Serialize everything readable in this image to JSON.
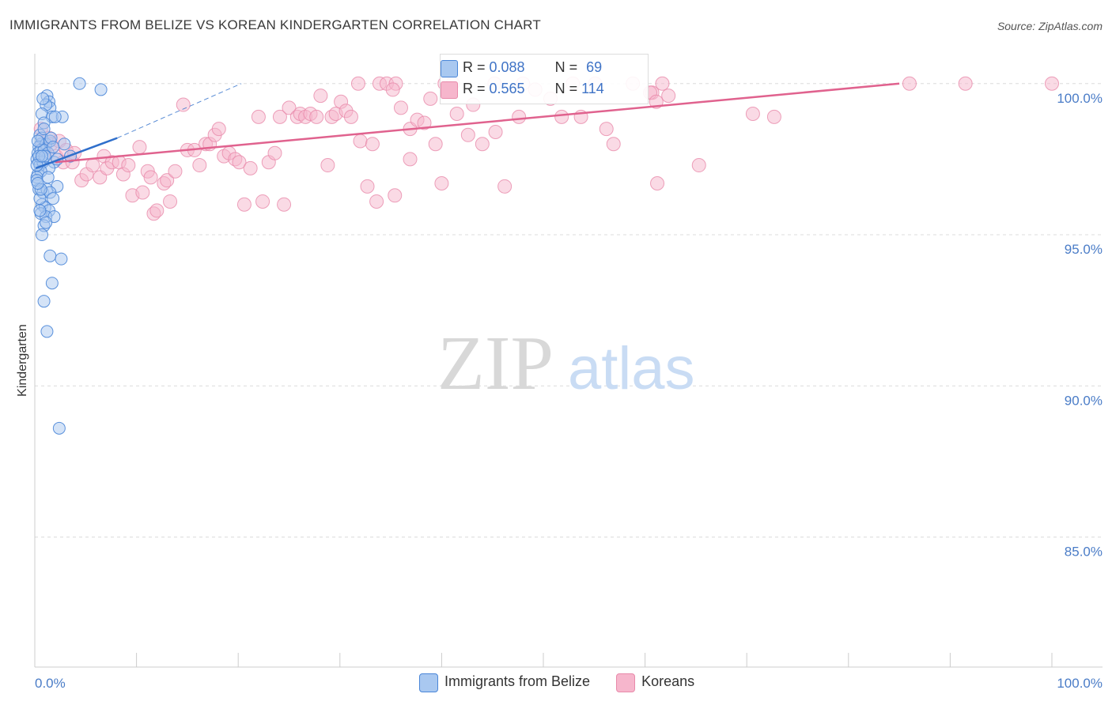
{
  "title": "IMMIGRANTS FROM BELIZE VS KOREAN KINDERGARTEN CORRELATION CHART",
  "source": "Source: ZipAtlas.com",
  "watermark": {
    "zip": "ZIP",
    "atlas": "atlas"
  },
  "colors": {
    "belize_fill": "#a9c8f0",
    "belize_stroke": "#4a86d8",
    "belize_line": "#2f6fcb",
    "korean_fill": "#f6b6cc",
    "korean_stroke": "#e88aaa",
    "korean_line": "#e0628e",
    "grid": "#dcdcdc",
    "axis_text": "#4a7cc7"
  },
  "legend_top": [
    {
      "r_label": "R = ",
      "r_value": "0.088",
      "n_label": "N = ",
      "n_value": "69"
    },
    {
      "r_label": "R = ",
      "r_value": "0.565",
      "n_label": "N = ",
      "n_value": "114"
    }
  ],
  "legend_bottom": [
    "Immigrants from Belize",
    "Koreans"
  ],
  "chart_data": {
    "type": "scatter",
    "title": "IMMIGRANTS FROM BELIZE VS KOREAN KINDERGARTEN CORRELATION CHART",
    "xlabel": "",
    "ylabel": "Kindergarten",
    "xlim": [
      0,
      100
    ],
    "ylim": [
      80.7,
      100.7
    ],
    "x_tick_labels": [
      "0.0%",
      "100.0%"
    ],
    "y_ticks": [
      85,
      90,
      95,
      100
    ],
    "y_tick_labels": [
      "85.0%",
      "90.0%",
      "95.0%",
      "100.0%"
    ],
    "series": [
      {
        "name": "Immigrants from Belize",
        "R": 0.088,
        "N": 69,
        "trend": {
          "x": [
            0.1,
            8.1
          ],
          "y": [
            97.2,
            98.2
          ]
        },
        "trend_extended": {
          "x": [
            8.1,
            20.3
          ],
          "y": [
            98.2,
            100.0
          ]
        },
        "points": [
          [
            1.2,
            99.6
          ],
          [
            4.4,
            100.0
          ],
          [
            6.5,
            99.8
          ],
          [
            1.4,
            99.4
          ],
          [
            1.5,
            99.2
          ],
          [
            1.1,
            99.3
          ],
          [
            0.7,
            99.0
          ],
          [
            1.7,
            98.9
          ],
          [
            2.7,
            98.9
          ],
          [
            0.9,
            98.7
          ],
          [
            0.5,
            98.3
          ],
          [
            0.6,
            98.0
          ],
          [
            0.7,
            98.2
          ],
          [
            0.4,
            97.9
          ],
          [
            1.1,
            98.0
          ],
          [
            1.5,
            98.1
          ],
          [
            2.9,
            98.0
          ],
          [
            0.3,
            97.7
          ],
          [
            0.6,
            97.8
          ],
          [
            0.9,
            97.8
          ],
          [
            1.3,
            97.7
          ],
          [
            3.5,
            97.6
          ],
          [
            0.2,
            97.5
          ],
          [
            0.4,
            97.4
          ],
          [
            0.5,
            97.3
          ],
          [
            0.8,
            97.4
          ],
          [
            1.9,
            97.4
          ],
          [
            1.4,
            97.2
          ],
          [
            0.3,
            97.0
          ],
          [
            0.6,
            97.1
          ],
          [
            0.2,
            96.9
          ],
          [
            0.4,
            96.5
          ],
          [
            0.8,
            96.4
          ],
          [
            1.2,
            96.5
          ],
          [
            2.2,
            96.6
          ],
          [
            1.5,
            96.4
          ],
          [
            0.7,
            96.0
          ],
          [
            1.0,
            95.9
          ],
          [
            1.4,
            95.8
          ],
          [
            1.8,
            96.2
          ],
          [
            0.6,
            95.7
          ],
          [
            1.1,
            95.6
          ],
          [
            1.9,
            95.6
          ],
          [
            0.9,
            95.3
          ],
          [
            0.7,
            95.0
          ],
          [
            1.5,
            94.3
          ],
          [
            2.6,
            94.2
          ],
          [
            1.7,
            93.4
          ],
          [
            0.9,
            92.8
          ],
          [
            1.2,
            91.8
          ],
          [
            2.4,
            88.6
          ],
          [
            0.2,
            96.8
          ],
          [
            0.3,
            98.1
          ],
          [
            0.5,
            96.2
          ],
          [
            1.0,
            97.6
          ],
          [
            2.0,
            98.9
          ],
          [
            0.8,
            99.5
          ],
          [
            0.4,
            97.6
          ],
          [
            1.6,
            98.2
          ],
          [
            0.6,
            96.5
          ],
          [
            1.3,
            96.9
          ],
          [
            0.2,
            97.3
          ],
          [
            0.9,
            98.5
          ],
          [
            2.2,
            97.5
          ],
          [
            0.5,
            95.8
          ],
          [
            1.1,
            95.4
          ],
          [
            0.3,
            96.7
          ],
          [
            1.8,
            97.9
          ],
          [
            0.7,
            97.6
          ]
        ]
      },
      {
        "name": "Koreans",
        "R": 0.565,
        "N": 114,
        "trend": {
          "x": [
            2.0,
            85.0
          ],
          "y": [
            97.4,
            100.0
          ]
        },
        "points": [
          [
            0.6,
            98.5
          ],
          [
            0.8,
            98.0
          ],
          [
            1.0,
            97.9
          ],
          [
            1.4,
            98.2
          ],
          [
            1.6,
            98.0
          ],
          [
            2.1,
            97.6
          ],
          [
            2.4,
            98.1
          ],
          [
            2.8,
            97.4
          ],
          [
            3.1,
            97.8
          ],
          [
            3.7,
            97.4
          ],
          [
            3.9,
            97.7
          ],
          [
            4.6,
            96.8
          ],
          [
            5.1,
            97.0
          ],
          [
            5.7,
            97.3
          ],
          [
            6.4,
            96.9
          ],
          [
            6.8,
            97.6
          ],
          [
            7.1,
            97.2
          ],
          [
            7.6,
            97.4
          ],
          [
            8.3,
            97.4
          ],
          [
            8.7,
            97.0
          ],
          [
            9.2,
            97.3
          ],
          [
            9.6,
            96.3
          ],
          [
            10.3,
            97.9
          ],
          [
            10.6,
            96.4
          ],
          [
            11.1,
            97.1
          ],
          [
            11.4,
            96.9
          ],
          [
            11.7,
            95.7
          ],
          [
            12.0,
            95.8
          ],
          [
            12.7,
            96.7
          ],
          [
            13.0,
            96.8
          ],
          [
            13.3,
            96.1
          ],
          [
            13.8,
            97.1
          ],
          [
            14.6,
            99.3
          ],
          [
            15.0,
            97.8
          ],
          [
            15.7,
            97.8
          ],
          [
            16.2,
            97.3
          ],
          [
            16.8,
            98.0
          ],
          [
            17.2,
            98.0
          ],
          [
            17.7,
            98.3
          ],
          [
            18.1,
            98.5
          ],
          [
            18.6,
            97.6
          ],
          [
            19.1,
            97.7
          ],
          [
            19.7,
            97.5
          ],
          [
            20.1,
            97.4
          ],
          [
            20.6,
            96.0
          ],
          [
            21.2,
            97.2
          ],
          [
            22.0,
            98.9
          ],
          [
            22.4,
            96.1
          ],
          [
            23.0,
            97.4
          ],
          [
            23.6,
            97.7
          ],
          [
            24.1,
            98.9
          ],
          [
            24.5,
            96.0
          ],
          [
            25.0,
            99.2
          ],
          [
            25.8,
            98.9
          ],
          [
            26.1,
            99.0
          ],
          [
            26.6,
            98.9
          ],
          [
            27.1,
            99.0
          ],
          [
            27.7,
            98.9
          ],
          [
            28.1,
            99.6
          ],
          [
            28.8,
            97.3
          ],
          [
            29.2,
            98.9
          ],
          [
            29.6,
            99.0
          ],
          [
            30.1,
            99.4
          ],
          [
            30.6,
            99.1
          ],
          [
            31.1,
            98.9
          ],
          [
            32.0,
            98.1
          ],
          [
            31.8,
            100.0
          ],
          [
            33.2,
            98.0
          ],
          [
            33.9,
            100.0
          ],
          [
            32.7,
            96.6
          ],
          [
            34.6,
            100.0
          ],
          [
            35.5,
            100.0
          ],
          [
            35.4,
            96.3
          ],
          [
            33.6,
            96.1
          ],
          [
            35.2,
            99.8
          ],
          [
            36.0,
            99.2
          ],
          [
            36.9,
            98.5
          ],
          [
            36.9,
            97.5
          ],
          [
            37.6,
            98.8
          ],
          [
            38.3,
            98.7
          ],
          [
            38.9,
            99.5
          ],
          [
            39.4,
            98.0
          ],
          [
            40.3,
            100.0
          ],
          [
            40.0,
            96.7
          ],
          [
            41.1,
            100.0
          ],
          [
            41.5,
            99.0
          ],
          [
            42.6,
            98.3
          ],
          [
            43.1,
            99.3
          ],
          [
            44.0,
            98.0
          ],
          [
            45.3,
            98.4
          ],
          [
            45.2,
            100.0
          ],
          [
            46.2,
            96.6
          ],
          [
            47.6,
            98.9
          ],
          [
            48.0,
            100.0
          ],
          [
            49.2,
            99.8
          ],
          [
            50.7,
            99.5
          ],
          [
            51.8,
            98.9
          ],
          [
            52.9,
            100.0
          ],
          [
            53.7,
            98.9
          ],
          [
            55.1,
            100.0
          ],
          [
            56.2,
            98.5
          ],
          [
            56.9,
            98.0
          ],
          [
            58.8,
            100.0
          ],
          [
            60.7,
            99.7
          ],
          [
            60.5,
            99.7
          ],
          [
            61.1,
            99.4
          ],
          [
            61.7,
            100.0
          ],
          [
            62.3,
            99.6
          ],
          [
            61.2,
            96.7
          ],
          [
            65.3,
            97.3
          ],
          [
            70.6,
            99.0
          ],
          [
            72.7,
            98.9
          ],
          [
            86.0,
            100.0
          ],
          [
            91.5,
            100.0
          ],
          [
            100.0,
            100.0
          ]
        ]
      }
    ]
  }
}
